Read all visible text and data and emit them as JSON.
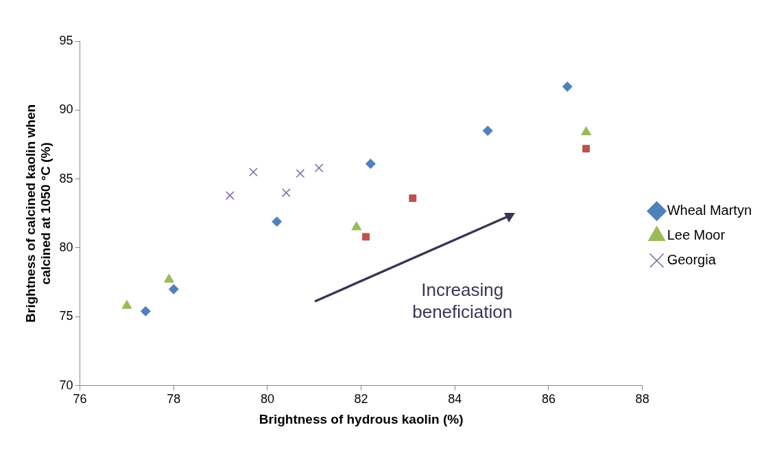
{
  "chart_data": {
    "type": "scatter",
    "xlabel": "Brightness of hydrous kaolin (%)",
    "ylabel": "Brightness of calcined kaolin when calcined at 1050 °C (%)",
    "xlim": [
      76,
      88
    ],
    "xticks": [
      76,
      78,
      80,
      82,
      84,
      86,
      88
    ],
    "ylim": [
      70,
      95
    ],
    "yticks": [
      70,
      75,
      80,
      85,
      90,
      95
    ],
    "grid": false,
    "legend": "right",
    "annotations": [
      "Increasing beneficiation"
    ],
    "series": [
      {
        "name": "Wheal Martyn",
        "color": "#4f81bd",
        "marker": "diamond",
        "x": [
          77.4,
          78.0,
          80.2,
          82.2,
          84.7,
          86.4
        ],
        "values": [
          75.4,
          77.0,
          81.9,
          86.1,
          88.5,
          91.7
        ]
      },
      {
        "color": "#c0504d",
        "marker": "square",
        "x": [
          82.1,
          83.1,
          86.8
        ],
        "values": [
          80.8,
          83.6,
          87.2
        ]
      },
      {
        "name": "Lee Moor",
        "color": "#9bbb59",
        "marker": "triangle",
        "x": [
          77.0,
          77.9,
          81.9,
          86.8
        ],
        "values": [
          75.8,
          77.7,
          81.5,
          88.4
        ]
      },
      {
        "name": "Georgia",
        "color": "#8064a2",
        "marker": "cross",
        "x": [
          79.2,
          79.7,
          80.4,
          80.7,
          81.1
        ],
        "values": [
          83.8,
          85.5,
          84.0,
          85.4,
          85.8
        ]
      }
    ]
  }
}
